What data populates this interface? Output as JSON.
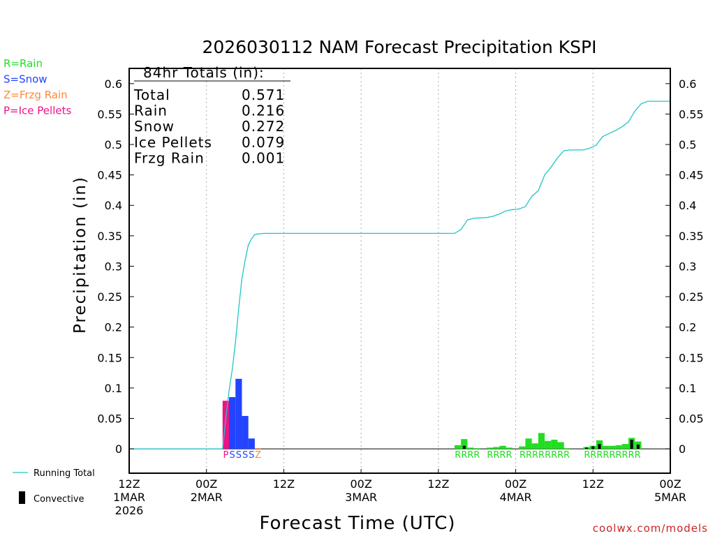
{
  "chart_data": {
    "type": "bar",
    "title": "2026030112 NAM Forecast Precipitation KSPI",
    "xlabel": "Forecast Time (UTC)",
    "ylabel": "Precipitation (in)",
    "ylim": [
      -0.04,
      0.625
    ],
    "y_ticks": [
      "0",
      "0.05",
      "0.1",
      "0.15",
      "0.2",
      "0.25",
      "0.3",
      "0.35",
      "0.4",
      "0.45",
      "0.5",
      "0.55",
      "0.6"
    ],
    "y_tick_values": [
      0,
      0.05,
      0.1,
      0.15,
      0.2,
      0.25,
      0.3,
      0.35,
      0.4,
      0.45,
      0.5,
      0.55,
      0.6
    ],
    "x_range_hours": [
      0,
      84
    ],
    "x_ticks": [
      {
        "hour": 0,
        "line1": "12Z",
        "line2": "1MAR",
        "line3": "2026"
      },
      {
        "hour": 12,
        "line1": "00Z",
        "line2": "2MAR",
        "line3": ""
      },
      {
        "hour": 24,
        "line1": "12Z",
        "line2": "",
        "line3": ""
      },
      {
        "hour": 36,
        "line1": "00Z",
        "line2": "3MAR",
        "line3": ""
      },
      {
        "hour": 48,
        "line1": "12Z",
        "line2": "",
        "line3": ""
      },
      {
        "hour": 60,
        "line1": "00Z",
        "line2": "4MAR",
        "line3": ""
      },
      {
        "hour": 72,
        "line1": "12Z",
        "line2": "",
        "line3": ""
      },
      {
        "hour": 84,
        "line1": "00Z",
        "line2": "5MAR",
        "line3": ""
      }
    ],
    "precip_type_legend": [
      {
        "label": "R=Rain",
        "color": "#22dd22"
      },
      {
        "label": "S=Snow",
        "color": "#2244ff"
      },
      {
        "label": "Z=Frzg Rain",
        "color": "#ff8833"
      },
      {
        "label": "P=Ice Pellets",
        "color": "#ee1188"
      }
    ],
    "totals": {
      "header": "84hr Totals (in):",
      "rows": [
        {
          "label": "Total",
          "value": "0.571"
        },
        {
          "label": "Rain",
          "value": "0.216"
        },
        {
          "label": "Snow",
          "value": "0.272"
        },
        {
          "label": "Ice Pellets",
          "value": "0.079"
        },
        {
          "label": "Frzg Rain",
          "value": "0.001"
        }
      ]
    },
    "bars": [
      {
        "hour": 15.0,
        "value": 0.079,
        "type": "P",
        "convective": 0
      },
      {
        "hour": 16.0,
        "value": 0.085,
        "type": "S",
        "convective": 0
      },
      {
        "hour": 17.0,
        "value": 0.115,
        "type": "S",
        "convective": 0
      },
      {
        "hour": 18.0,
        "value": 0.054,
        "type": "S",
        "convective": 0
      },
      {
        "hour": 19.0,
        "value": 0.017,
        "type": "S",
        "convective": 0
      },
      {
        "hour": 20.0,
        "value": 0.001,
        "type": "Z",
        "convective": 0
      },
      {
        "hour": 51.0,
        "value": 0.006,
        "type": "R",
        "convective": 0
      },
      {
        "hour": 52.0,
        "value": 0.016,
        "type": "R",
        "convective": 0.005
      },
      {
        "hour": 53.0,
        "value": 0.002,
        "type": "R",
        "convective": 0
      },
      {
        "hour": 54.0,
        "value": 0.001,
        "type": "R",
        "convective": 0
      },
      {
        "hour": 56.0,
        "value": 0.002,
        "type": "R",
        "convective": 0
      },
      {
        "hour": 57.0,
        "value": 0.003,
        "type": "R",
        "convective": 0
      },
      {
        "hour": 58.0,
        "value": 0.005,
        "type": "R",
        "convective": 0
      },
      {
        "hour": 59.0,
        "value": 0.002,
        "type": "R",
        "convective": 0
      },
      {
        "hour": 61.0,
        "value": 0.004,
        "type": "R",
        "convective": 0
      },
      {
        "hour": 62.0,
        "value": 0.017,
        "type": "R",
        "convective": 0
      },
      {
        "hour": 63.0,
        "value": 0.009,
        "type": "R",
        "convective": 0
      },
      {
        "hour": 64.0,
        "value": 0.026,
        "type": "R",
        "convective": 0
      },
      {
        "hour": 65.0,
        "value": 0.013,
        "type": "R",
        "convective": 0
      },
      {
        "hour": 66.0,
        "value": 0.015,
        "type": "R",
        "convective": 0
      },
      {
        "hour": 67.0,
        "value": 0.011,
        "type": "R",
        "convective": 0
      },
      {
        "hour": 68.0,
        "value": 0.001,
        "type": "R",
        "convective": 0
      },
      {
        "hour": 71.0,
        "value": 0.003,
        "type": "R",
        "convective": 0.002
      },
      {
        "hour": 72.0,
        "value": 0.005,
        "type": "R",
        "convective": 0.004
      },
      {
        "hour": 73.0,
        "value": 0.014,
        "type": "R",
        "convective": 0.008
      },
      {
        "hour": 74.0,
        "value": 0.005,
        "type": "R",
        "convective": 0
      },
      {
        "hour": 75.0,
        "value": 0.005,
        "type": "R",
        "convective": 0
      },
      {
        "hour": 76.0,
        "value": 0.006,
        "type": "R",
        "convective": 0
      },
      {
        "hour": 77.0,
        "value": 0.008,
        "type": "R",
        "convective": 0
      },
      {
        "hour": 78.0,
        "value": 0.018,
        "type": "R",
        "convective": 0.015
      },
      {
        "hour": 79.0,
        "value": 0.012,
        "type": "R",
        "convective": 0.007
      }
    ],
    "running_total": [
      [
        0,
        0
      ],
      [
        12,
        0
      ],
      [
        14.5,
        0
      ],
      [
        15,
        0.05
      ],
      [
        15.5,
        0.095
      ],
      [
        16,
        0.13
      ],
      [
        16.5,
        0.175
      ],
      [
        17,
        0.23
      ],
      [
        17.5,
        0.28
      ],
      [
        18,
        0.31
      ],
      [
        18.5,
        0.335
      ],
      [
        19,
        0.345
      ],
      [
        19.5,
        0.352
      ],
      [
        20,
        0.353
      ],
      [
        21,
        0.354
      ],
      [
        30,
        0.354
      ],
      [
        45,
        0.354
      ],
      [
        50.5,
        0.354
      ],
      [
        51.5,
        0.36
      ],
      [
        52.5,
        0.376
      ],
      [
        53.5,
        0.379
      ],
      [
        55.5,
        0.38
      ],
      [
        56.5,
        0.382
      ],
      [
        57.5,
        0.386
      ],
      [
        58.5,
        0.391
      ],
      [
        59.5,
        0.393
      ],
      [
        60.5,
        0.394
      ],
      [
        61.5,
        0.398
      ],
      [
        62.5,
        0.415
      ],
      [
        63.5,
        0.424
      ],
      [
        64.5,
        0.45
      ],
      [
        65.5,
        0.463
      ],
      [
        66.5,
        0.478
      ],
      [
        67.5,
        0.49
      ],
      [
        68.5,
        0.491
      ],
      [
        70.5,
        0.491
      ],
      [
        71.5,
        0.494
      ],
      [
        72.5,
        0.499
      ],
      [
        73.5,
        0.513
      ],
      [
        74.5,
        0.518
      ],
      [
        75.5,
        0.523
      ],
      [
        76.5,
        0.529
      ],
      [
        77.5,
        0.537
      ],
      [
        78.5,
        0.555
      ],
      [
        79.5,
        0.567
      ],
      [
        80.5,
        0.571
      ],
      [
        84,
        0.571
      ]
    ],
    "type_labels": [
      {
        "text": "P",
        "hour": 15.0,
        "type": "P"
      },
      {
        "text": "S",
        "hour": 16.0,
        "type": "S"
      },
      {
        "text": "S",
        "hour": 17.0,
        "type": "S"
      },
      {
        "text": "S",
        "hour": 18.0,
        "type": "S"
      },
      {
        "text": "S",
        "hour": 19.0,
        "type": "S"
      },
      {
        "text": "Z",
        "hour": 20.0,
        "type": "Z"
      },
      {
        "text": "RRRR",
        "hour": 52.5,
        "type": "R"
      },
      {
        "text": "RRRR",
        "hour": 57.5,
        "type": "R"
      },
      {
        "text": "RRRRRRRR",
        "hour": 64.5,
        "type": "R"
      },
      {
        "text": "RRRRRRRRR",
        "hour": 75.0,
        "type": "R"
      }
    ],
    "colors": {
      "R": "#22dd22",
      "S": "#2244ff",
      "Z": "#ff8833",
      "P": "#ee1188",
      "running_total": "#22c4c4",
      "convective": "#000000"
    },
    "line_legend": [
      {
        "label": "Running Total",
        "kind": "line"
      },
      {
        "label": "Convective",
        "kind": "bar"
      }
    ],
    "credit": "coolwx.com/models"
  }
}
